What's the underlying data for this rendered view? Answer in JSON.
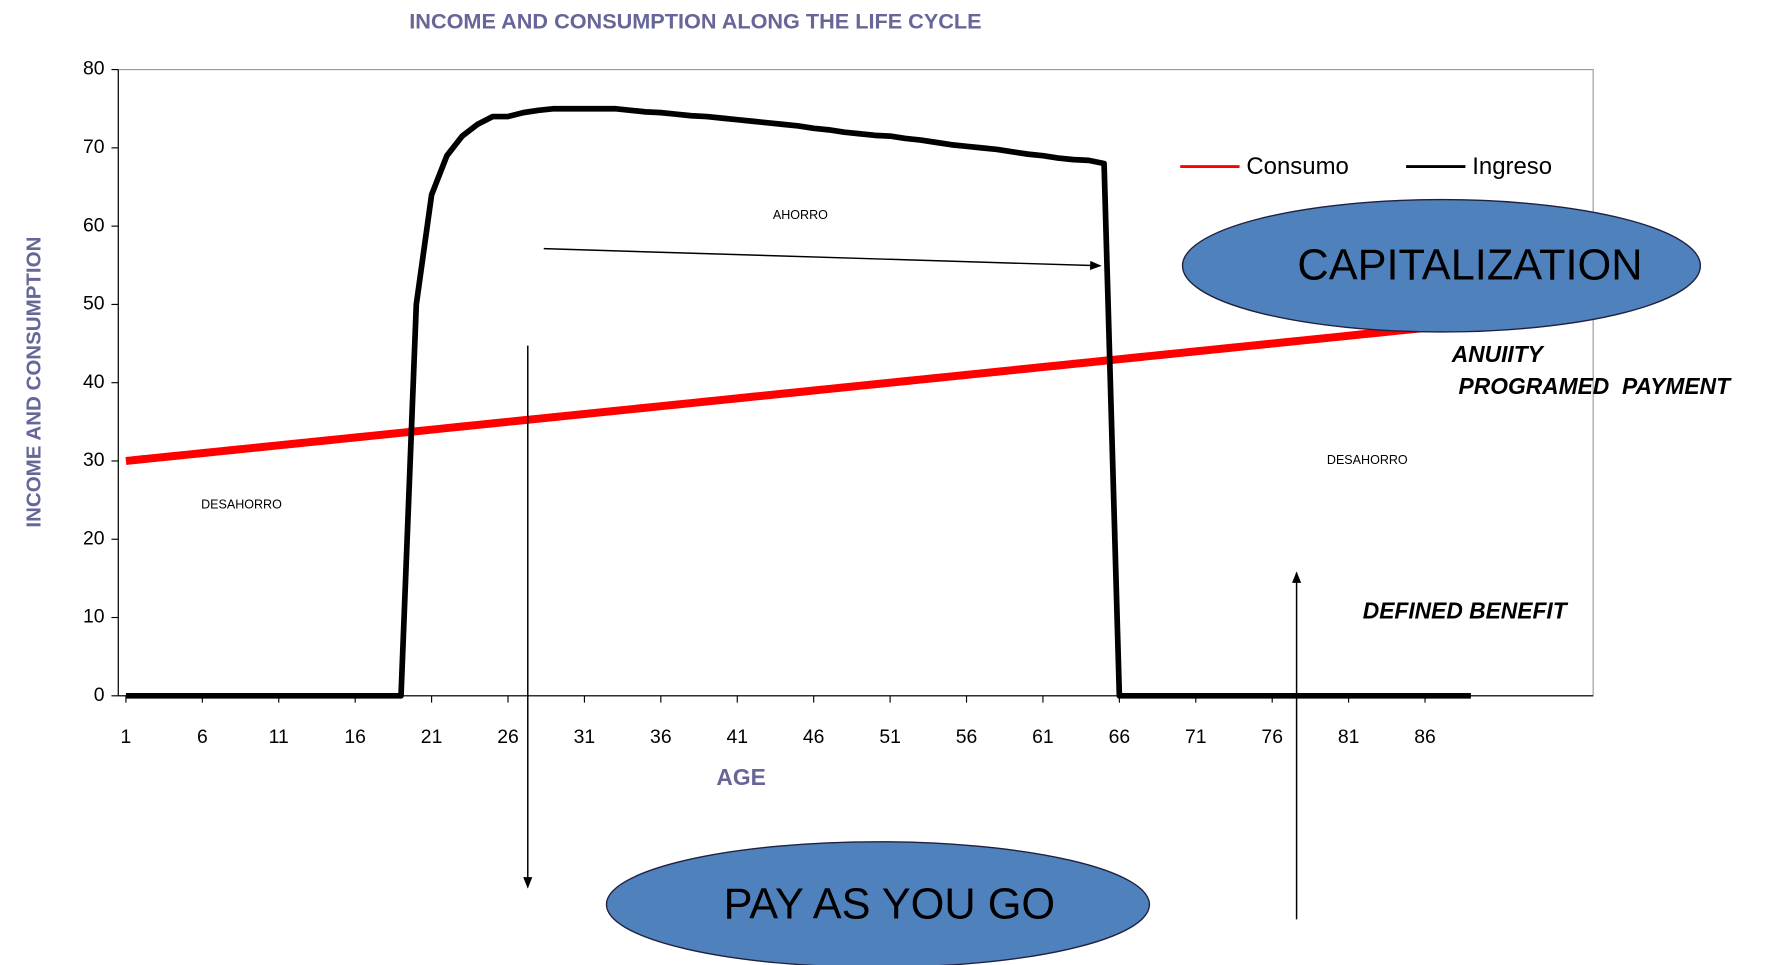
{
  "chart_data": {
    "type": "line",
    "title": "INCOME AND CONSUMPTION ALONG THE LIFE CYCLE",
    "xlabel": "AGE",
    "ylabel": "INCOME AND CONSUMPTION",
    "x": [
      1,
      2,
      3,
      4,
      5,
      6,
      7,
      8,
      9,
      10,
      11,
      12,
      13,
      14,
      15,
      16,
      17,
      18,
      19,
      20,
      21,
      22,
      23,
      24,
      25,
      26,
      27,
      28,
      29,
      30,
      31,
      32,
      33,
      34,
      35,
      36,
      37,
      38,
      39,
      40,
      41,
      42,
      43,
      44,
      45,
      46,
      47,
      48,
      49,
      50,
      51,
      52,
      53,
      54,
      55,
      56,
      57,
      58,
      59,
      60,
      61,
      62,
      63,
      64,
      65,
      66,
      67,
      68,
      69,
      70,
      71,
      72,
      73,
      74,
      75,
      76,
      77,
      78,
      79,
      80,
      81,
      82,
      83,
      84,
      85,
      86,
      87,
      88,
      89
    ],
    "xlim": [
      0.5,
      97
    ],
    "xticks": [
      1,
      6,
      11,
      16,
      21,
      26,
      31,
      36,
      41,
      46,
      51,
      56,
      61,
      66,
      71,
      76,
      81,
      86
    ],
    "ylim": [
      0,
      80
    ],
    "yticks": [
      0,
      10,
      20,
      30,
      40,
      50,
      60,
      70,
      80
    ],
    "grid": false,
    "legend": "top-right",
    "series": [
      {
        "name": "Consumo",
        "color": "#ff0000",
        "values": [
          30,
          30.2,
          30.4,
          30.6,
          30.8,
          31,
          31.2,
          31.4,
          31.6,
          31.8,
          32,
          32.2,
          32.4,
          32.6,
          32.8,
          33,
          33.2,
          33.4,
          33.6,
          33.8,
          34,
          34.2,
          34.4,
          34.6,
          34.8,
          35,
          35.2,
          35.4,
          35.6,
          35.8,
          36,
          36.2,
          36.4,
          36.6,
          36.8,
          37,
          37.2,
          37.4,
          37.6,
          37.8,
          38,
          38.2,
          38.4,
          38.6,
          38.8,
          39,
          39.2,
          39.4,
          39.6,
          39.8,
          40,
          40.2,
          40.4,
          40.6,
          40.8,
          41,
          41.2,
          41.4,
          41.6,
          41.8,
          42,
          42.2,
          42.4,
          42.6,
          42.8,
          43,
          43.2,
          43.4,
          43.6,
          43.8,
          44,
          44.2,
          44.4,
          44.6,
          44.8,
          45,
          45.2,
          45.4,
          45.6,
          45.8,
          46,
          46.2,
          46.4,
          46.6,
          46.8,
          47,
          47.2,
          47.4,
          47.6
        ]
      },
      {
        "name": "Ingreso",
        "color": "#000000",
        "values": [
          0,
          0,
          0,
          0,
          0,
          0,
          0,
          0,
          0,
          0,
          0,
          0,
          0,
          0,
          0,
          0,
          0,
          0,
          0,
          50,
          64,
          69,
          71.5,
          73,
          74,
          74,
          74.5,
          74.8,
          75,
          75,
          75,
          75,
          75,
          74.8,
          74.6,
          74.5,
          74.3,
          74.1,
          74,
          73.8,
          73.6,
          73.4,
          73.2,
          73,
          72.8,
          72.5,
          72.3,
          72,
          71.8,
          71.6,
          71.5,
          71.2,
          71,
          70.7,
          70.4,
          70.2,
          70,
          69.8,
          69.5,
          69.2,
          69,
          68.7,
          68.5,
          68.4,
          68,
          0,
          0,
          0,
          0,
          0,
          0,
          0,
          0,
          0,
          0,
          0,
          0,
          0,
          0,
          0,
          0,
          0,
          0,
          0,
          0,
          0,
          0,
          0,
          0
        ]
      }
    ],
    "annotations": [
      "AHORRO",
      "DESAHORRO",
      "DESAHORRO",
      "CAPITALIZATION",
      "PAY AS YOU GO",
      "ANUIITY",
      "PROGRAMED  PAYMENT",
      "DEFINED BENEFIT"
    ]
  }
}
